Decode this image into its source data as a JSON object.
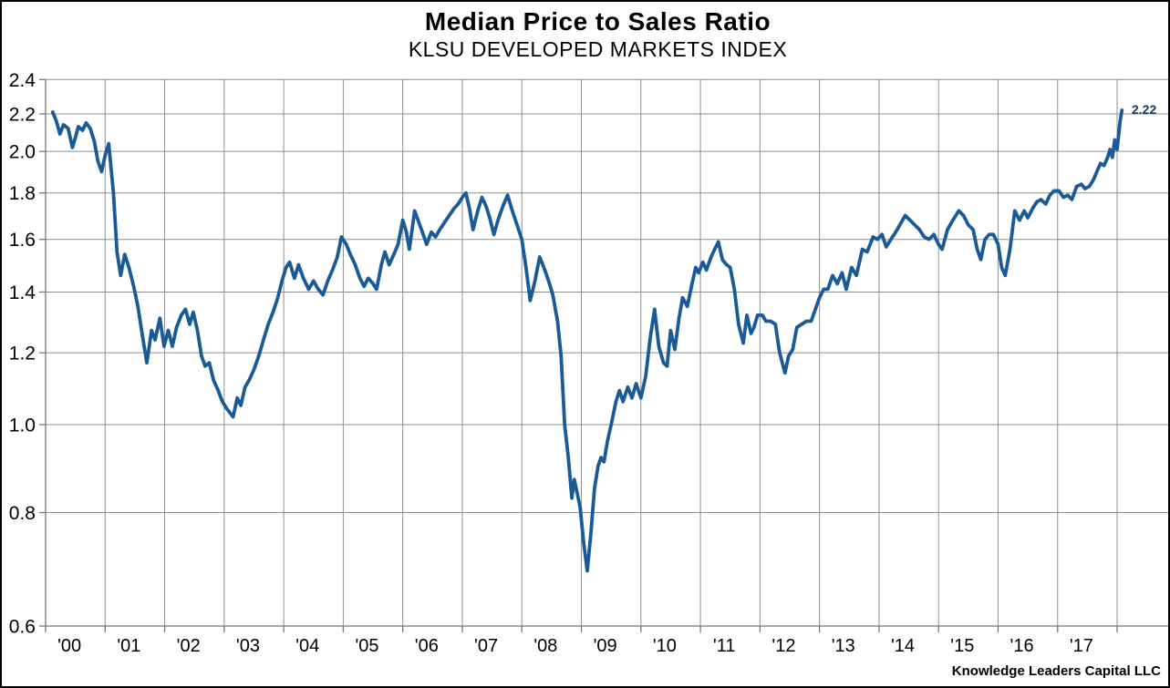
{
  "header": {
    "title": "Median Price to Sales Ratio",
    "subtitle": "KLSU DEVELOPED MARKETS INDEX"
  },
  "footer": {
    "credit": "Knowledge Leaders Capital LLC"
  },
  "chart_data": {
    "type": "line",
    "title": "Median Price to Sales Ratio",
    "subtitle": "KLSU DEVELOPED MARKETS INDEX",
    "legend": "none",
    "grid": "on",
    "series_name": "Median price to sales ratio, KLSU Developed Markets Index",
    "end_label": "2.22",
    "last_value": 2.22,
    "colors": {
      "line": "#1a5b97",
      "end_label_text": "#17375e",
      "grid": "#8f8f8f",
      "axis": "#777777",
      "text": "#000000",
      "background": "#ffffff"
    },
    "y_axis": {
      "scale": "log",
      "min": 0.6,
      "max": 2.4,
      "tick_labels": [
        "2.4",
        "2.2",
        "2.0",
        "1.8",
        "1.6",
        "1.4",
        "1.2",
        "1.0",
        "0.8",
        "0.6"
      ],
      "tick_values": [
        2.4,
        2.2,
        2.0,
        1.8,
        1.6,
        1.4,
        1.2,
        1.0,
        0.8,
        0.6
      ],
      "gridline_values": [
        2.4,
        2.2,
        2.0,
        1.8,
        1.6,
        1.4,
        1.2,
        1.0,
        0.8
      ]
    },
    "x_axis": {
      "min_year": 2000,
      "max_year": 2018,
      "tick_years": [
        2000,
        2001,
        2002,
        2003,
        2004,
        2005,
        2006,
        2007,
        2008,
        2009,
        2010,
        2011,
        2012,
        2013,
        2014,
        2015,
        2016,
        2017,
        2018
      ],
      "labels": [
        "'00",
        "'01",
        "'02",
        "'03",
        "'04",
        "'05",
        "'06",
        "'07",
        "'08",
        "'09",
        "'10",
        "'11",
        "'12",
        "'13",
        "'14",
        "'15",
        "'16",
        "'17"
      ],
      "label_year_offset": 0.4
    },
    "points": [
      [
        2000.12,
        2.21
      ],
      [
        2000.18,
        2.16
      ],
      [
        2000.24,
        2.09
      ],
      [
        2000.3,
        2.14
      ],
      [
        2000.38,
        2.12
      ],
      [
        2000.45,
        2.02
      ],
      [
        2000.5,
        2.07
      ],
      [
        2000.55,
        2.13
      ],
      [
        2000.62,
        2.11
      ],
      [
        2000.68,
        2.15
      ],
      [
        2000.75,
        2.12
      ],
      [
        2000.82,
        2.05
      ],
      [
        2000.88,
        1.95
      ],
      [
        2000.94,
        1.9
      ],
      [
        2001.0,
        1.98
      ],
      [
        2001.06,
        2.04
      ],
      [
        2001.14,
        1.8
      ],
      [
        2001.2,
        1.55
      ],
      [
        2001.26,
        1.46
      ],
      [
        2001.33,
        1.54
      ],
      [
        2001.4,
        1.49
      ],
      [
        2001.48,
        1.42
      ],
      [
        2001.55,
        1.35
      ],
      [
        2001.62,
        1.26
      ],
      [
        2001.7,
        1.17
      ],
      [
        2001.78,
        1.27
      ],
      [
        2001.84,
        1.24
      ],
      [
        2001.92,
        1.31
      ],
      [
        2001.99,
        1.22
      ],
      [
        2002.06,
        1.27
      ],
      [
        2002.13,
        1.22
      ],
      [
        2002.2,
        1.28
      ],
      [
        2002.28,
        1.32
      ],
      [
        2002.35,
        1.34
      ],
      [
        2002.42,
        1.29
      ],
      [
        2002.48,
        1.33
      ],
      [
        2002.55,
        1.27
      ],
      [
        2002.62,
        1.19
      ],
      [
        2002.68,
        1.16
      ],
      [
        2002.75,
        1.17
      ],
      [
        2002.82,
        1.12
      ],
      [
        2002.9,
        1.09
      ],
      [
        2002.97,
        1.06
      ],
      [
        2003.05,
        1.04
      ],
      [
        2003.15,
        1.02
      ],
      [
        2003.22,
        1.07
      ],
      [
        2003.28,
        1.05
      ],
      [
        2003.35,
        1.1
      ],
      [
        2003.42,
        1.12
      ],
      [
        2003.5,
        1.15
      ],
      [
        2003.58,
        1.19
      ],
      [
        2003.66,
        1.24
      ],
      [
        2003.74,
        1.29
      ],
      [
        2003.82,
        1.33
      ],
      [
        2003.9,
        1.38
      ],
      [
        2003.97,
        1.44
      ],
      [
        2004.04,
        1.49
      ],
      [
        2004.1,
        1.51
      ],
      [
        2004.18,
        1.45
      ],
      [
        2004.25,
        1.5
      ],
      [
        2004.33,
        1.45
      ],
      [
        2004.42,
        1.41
      ],
      [
        2004.5,
        1.44
      ],
      [
        2004.58,
        1.41
      ],
      [
        2004.66,
        1.39
      ],
      [
        2004.74,
        1.44
      ],
      [
        2004.82,
        1.48
      ],
      [
        2004.9,
        1.53
      ],
      [
        2004.97,
        1.61
      ],
      [
        2005.05,
        1.58
      ],
      [
        2005.12,
        1.54
      ],
      [
        2005.2,
        1.5
      ],
      [
        2005.28,
        1.45
      ],
      [
        2005.35,
        1.42
      ],
      [
        2005.42,
        1.45
      ],
      [
        2005.5,
        1.43
      ],
      [
        2005.56,
        1.41
      ],
      [
        2005.64,
        1.5
      ],
      [
        2005.7,
        1.55
      ],
      [
        2005.77,
        1.5
      ],
      [
        2005.85,
        1.54
      ],
      [
        2005.92,
        1.58
      ],
      [
        2006.0,
        1.68
      ],
      [
        2006.06,
        1.63
      ],
      [
        2006.11,
        1.56
      ],
      [
        2006.2,
        1.72
      ],
      [
        2006.27,
        1.67
      ],
      [
        2006.33,
        1.63
      ],
      [
        2006.4,
        1.58
      ],
      [
        2006.48,
        1.63
      ],
      [
        2006.55,
        1.61
      ],
      [
        2006.62,
        1.64
      ],
      [
        2006.7,
        1.67
      ],
      [
        2006.78,
        1.7
      ],
      [
        2006.86,
        1.73
      ],
      [
        2006.93,
        1.75
      ],
      [
        2007.0,
        1.78
      ],
      [
        2007.06,
        1.8
      ],
      [
        2007.12,
        1.73
      ],
      [
        2007.18,
        1.64
      ],
      [
        2007.26,
        1.72
      ],
      [
        2007.33,
        1.78
      ],
      [
        2007.4,
        1.74
      ],
      [
        2007.46,
        1.69
      ],
      [
        2007.53,
        1.62
      ],
      [
        2007.6,
        1.68
      ],
      [
        2007.68,
        1.74
      ],
      [
        2007.76,
        1.79
      ],
      [
        2007.84,
        1.72
      ],
      [
        2007.92,
        1.66
      ],
      [
        2008.0,
        1.6
      ],
      [
        2008.07,
        1.49
      ],
      [
        2008.14,
        1.37
      ],
      [
        2008.22,
        1.44
      ],
      [
        2008.3,
        1.53
      ],
      [
        2008.37,
        1.49
      ],
      [
        2008.45,
        1.44
      ],
      [
        2008.52,
        1.39
      ],
      [
        2008.6,
        1.3
      ],
      [
        2008.66,
        1.19
      ],
      [
        2008.72,
        1.0
      ],
      [
        2008.78,
        0.92
      ],
      [
        2008.84,
        0.83
      ],
      [
        2008.88,
        0.87
      ],
      [
        2008.93,
        0.84
      ],
      [
        2008.98,
        0.81
      ],
      [
        2009.04,
        0.74
      ],
      [
        2009.1,
        0.69
      ],
      [
        2009.16,
        0.76
      ],
      [
        2009.22,
        0.85
      ],
      [
        2009.28,
        0.9
      ],
      [
        2009.33,
        0.92
      ],
      [
        2009.38,
        0.91
      ],
      [
        2009.44,
        0.96
      ],
      [
        2009.5,
        1.0
      ],
      [
        2009.58,
        1.06
      ],
      [
        2009.64,
        1.09
      ],
      [
        2009.7,
        1.06
      ],
      [
        2009.78,
        1.1
      ],
      [
        2009.85,
        1.07
      ],
      [
        2009.92,
        1.11
      ],
      [
        2010.0,
        1.07
      ],
      [
        2010.08,
        1.13
      ],
      [
        2010.16,
        1.25
      ],
      [
        2010.23,
        1.34
      ],
      [
        2010.3,
        1.22
      ],
      [
        2010.38,
        1.17
      ],
      [
        2010.44,
        1.16
      ],
      [
        2010.5,
        1.27
      ],
      [
        2010.57,
        1.21
      ],
      [
        2010.64,
        1.31
      ],
      [
        2010.7,
        1.38
      ],
      [
        2010.78,
        1.35
      ],
      [
        2010.86,
        1.43
      ],
      [
        2010.92,
        1.49
      ],
      [
        2010.97,
        1.47
      ],
      [
        2011.04,
        1.51
      ],
      [
        2011.1,
        1.48
      ],
      [
        2011.18,
        1.53
      ],
      [
        2011.24,
        1.56
      ],
      [
        2011.3,
        1.59
      ],
      [
        2011.37,
        1.52
      ],
      [
        2011.44,
        1.5
      ],
      [
        2011.5,
        1.49
      ],
      [
        2011.57,
        1.41
      ],
      [
        2011.64,
        1.29
      ],
      [
        2011.72,
        1.23
      ],
      [
        2011.78,
        1.32
      ],
      [
        2011.85,
        1.26
      ],
      [
        2011.9,
        1.28
      ],
      [
        2011.96,
        1.32
      ],
      [
        2012.04,
        1.32
      ],
      [
        2012.1,
        1.3
      ],
      [
        2012.18,
        1.3
      ],
      [
        2012.26,
        1.29
      ],
      [
        2012.33,
        1.2
      ],
      [
        2012.42,
        1.14
      ],
      [
        2012.48,
        1.19
      ],
      [
        2012.55,
        1.21
      ],
      [
        2012.62,
        1.28
      ],
      [
        2012.7,
        1.29
      ],
      [
        2012.78,
        1.3
      ],
      [
        2012.86,
        1.3
      ],
      [
        2012.93,
        1.34
      ],
      [
        2013.0,
        1.38
      ],
      [
        2013.07,
        1.41
      ],
      [
        2013.14,
        1.41
      ],
      [
        2013.22,
        1.46
      ],
      [
        2013.3,
        1.43
      ],
      [
        2013.38,
        1.47
      ],
      [
        2013.45,
        1.41
      ],
      [
        2013.54,
        1.49
      ],
      [
        2013.62,
        1.46
      ],
      [
        2013.72,
        1.56
      ],
      [
        2013.8,
        1.55
      ],
      [
        2013.9,
        1.61
      ],
      [
        2013.97,
        1.6
      ],
      [
        2014.05,
        1.62
      ],
      [
        2014.12,
        1.57
      ],
      [
        2014.2,
        1.6
      ],
      [
        2014.28,
        1.63
      ],
      [
        2014.35,
        1.66
      ],
      [
        2014.44,
        1.7
      ],
      [
        2014.52,
        1.68
      ],
      [
        2014.6,
        1.66
      ],
      [
        2014.68,
        1.64
      ],
      [
        2014.76,
        1.61
      ],
      [
        2014.84,
        1.6
      ],
      [
        2014.92,
        1.62
      ],
      [
        2015.0,
        1.58
      ],
      [
        2015.06,
        1.56
      ],
      [
        2015.15,
        1.64
      ],
      [
        2015.24,
        1.68
      ],
      [
        2015.34,
        1.72
      ],
      [
        2015.42,
        1.7
      ],
      [
        2015.5,
        1.66
      ],
      [
        2015.58,
        1.64
      ],
      [
        2015.65,
        1.56
      ],
      [
        2015.71,
        1.52
      ],
      [
        2015.78,
        1.6
      ],
      [
        2015.85,
        1.62
      ],
      [
        2015.92,
        1.62
      ],
      [
        2016.0,
        1.58
      ],
      [
        2016.06,
        1.49
      ],
      [
        2016.12,
        1.46
      ],
      [
        2016.2,
        1.56
      ],
      [
        2016.28,
        1.72
      ],
      [
        2016.36,
        1.68
      ],
      [
        2016.44,
        1.72
      ],
      [
        2016.5,
        1.69
      ],
      [
        2016.58,
        1.73
      ],
      [
        2016.65,
        1.76
      ],
      [
        2016.72,
        1.77
      ],
      [
        2016.8,
        1.75
      ],
      [
        2016.87,
        1.79
      ],
      [
        2016.94,
        1.81
      ],
      [
        2017.02,
        1.81
      ],
      [
        2017.1,
        1.78
      ],
      [
        2017.17,
        1.79
      ],
      [
        2017.24,
        1.77
      ],
      [
        2017.32,
        1.83
      ],
      [
        2017.4,
        1.84
      ],
      [
        2017.46,
        1.82
      ],
      [
        2017.53,
        1.83
      ],
      [
        2017.6,
        1.86
      ],
      [
        2017.66,
        1.9
      ],
      [
        2017.72,
        1.94
      ],
      [
        2017.78,
        1.93
      ],
      [
        2017.84,
        1.97
      ],
      [
        2017.88,
        2.01
      ],
      [
        2017.92,
        1.97
      ],
      [
        2017.96,
        2.06
      ],
      [
        2018.0,
        2.01
      ],
      [
        2018.05,
        2.16
      ],
      [
        2018.08,
        2.22
      ]
    ]
  }
}
